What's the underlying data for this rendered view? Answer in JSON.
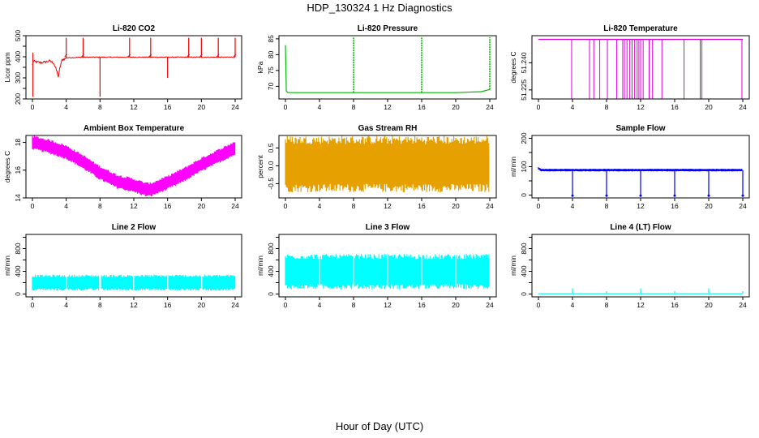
{
  "title": "HDP_130324  1 Hz Diagnostics",
  "xlabel": "Hour of Day (UTC)",
  "chart_data": [
    {
      "type": "line",
      "title": "Li-820 CO2",
      "ylabel": "Licor ppm",
      "color": "#ee0000",
      "xlim": [
        0,
        24
      ],
      "xticks": [
        0,
        4,
        8,
        12,
        16,
        20,
        24
      ],
      "ylim": [
        200,
        500
      ],
      "yticks": [
        200,
        250,
        300,
        350,
        400,
        450,
        500
      ],
      "yticklabels": [
        "200",
        "",
        "300",
        "",
        "400",
        "",
        "500"
      ],
      "style": "noisy",
      "series": [
        {
          "x": [
            0,
            0.1,
            0.2,
            0.5,
            1,
            1.5,
            2,
            2.5,
            2.9,
            3.1,
            3.2,
            3.5,
            3.8,
            4,
            6,
            8,
            10,
            12,
            14,
            16,
            18,
            20,
            22,
            24
          ],
          "y": [
            360,
            380,
            378,
            375,
            372,
            375,
            380,
            372,
            330,
            300,
            340,
            385,
            390,
            395,
            398,
            398,
            398,
            398,
            398,
            398,
            398,
            398,
            398,
            398
          ]
        }
      ],
      "spikes": [
        [
          4,
          490
        ],
        [
          6,
          490
        ],
        [
          8,
          210
        ],
        [
          11.5,
          490
        ],
        [
          14,
          490
        ],
        [
          16,
          300
        ],
        [
          18.5,
          490
        ],
        [
          20,
          490
        ],
        [
          22,
          490
        ],
        [
          24,
          490
        ]
      ]
    },
    {
      "type": "line",
      "title": "Li-820 Pressure",
      "ylabel": "kPa",
      "color": "#00bb00",
      "xlim": [
        0,
        24
      ],
      "xticks": [
        0,
        4,
        8,
        12,
        16,
        20,
        24
      ],
      "ylim": [
        66,
        86
      ],
      "yticks": [
        70,
        75,
        80,
        85
      ],
      "yticklabels": [
        "70",
        "75",
        "80",
        "85"
      ],
      "style": "dense",
      "series": [
        {
          "x": [
            0,
            0.1,
            0.3,
            2,
            4,
            8,
            12,
            16,
            20,
            23,
            24
          ],
          "y": [
            83,
            68.5,
            68,
            68,
            68,
            68,
            68,
            68,
            68,
            68.3,
            69
          ]
        }
      ],
      "spikes": [
        [
          8,
          85.5
        ],
        [
          16,
          85.5
        ],
        [
          24,
          85.5
        ]
      ]
    },
    {
      "type": "line",
      "title": "Li-820 Temperature",
      "ylabel": "degrees C",
      "color": "#dd00dd",
      "xlim": [
        0,
        24
      ],
      "xticks": [
        0,
        4,
        8,
        12,
        16,
        20,
        24
      ],
      "ylim": [
        51.22,
        51.255
      ],
      "yticks": [
        51.225,
        51.24
      ],
      "yticklabels": [
        "51.225",
        "51.240"
      ],
      "style": "baseline",
      "series": [
        {
          "x": [
            0,
            24
          ],
          "y": [
            51.253,
            51.253
          ]
        }
      ],
      "drops": [
        3.9,
        6,
        6.5,
        7.2,
        8.1,
        9.2,
        9.9,
        10.1,
        10.4,
        10.7,
        11,
        11.3,
        11.6,
        11.8,
        12,
        12.3,
        13,
        13.4,
        14.5,
        17.1,
        19,
        19.2,
        23.9
      ]
    },
    {
      "type": "line",
      "title": "Ambient Box Temperature",
      "ylabel": "degrees C",
      "color": "#ff00ff",
      "xlim": [
        0,
        24
      ],
      "xticks": [
        0,
        4,
        8,
        12,
        16,
        20,
        24
      ],
      "ylim": [
        14,
        18.5
      ],
      "yticks": [
        14,
        16,
        18
      ],
      "yticklabels": [
        "14",
        "16",
        "18"
      ],
      "style": "band",
      "band": 0.9,
      "series": [
        {
          "x": [
            0,
            2,
            4,
            6,
            8,
            10,
            12,
            13.5,
            14,
            16,
            18,
            20,
            22,
            24
          ],
          "y": [
            18,
            17.7,
            17.3,
            16.6,
            15.8,
            15.2,
            14.9,
            14.6,
            14.6,
            15.1,
            15.7,
            16.4,
            17.0,
            17.6
          ]
        }
      ]
    },
    {
      "type": "line",
      "title": "Gas Stream RH",
      "ylabel": "percent",
      "color": "#e6a000",
      "xlim": [
        0,
        24
      ],
      "xticks": [
        0,
        4,
        8,
        12,
        16,
        20,
        24
      ],
      "ylim": [
        -0.9,
        0.85
      ],
      "yticks": [
        -0.5,
        0,
        0.5
      ],
      "yticklabels": [
        "-0.5",
        "0.0",
        "0.5"
      ],
      "style": "band",
      "band": 1.35,
      "series": [
        {
          "x": [
            0,
            24
          ],
          "y": [
            0.05,
            0.05
          ]
        }
      ]
    },
    {
      "type": "line",
      "title": "Sample Flow",
      "ylabel": "ml/min",
      "color": "#0000ee",
      "xlim": [
        0,
        24
      ],
      "xticks": [
        0,
        4,
        8,
        12,
        16,
        20,
        24
      ],
      "ylim": [
        -10,
        210
      ],
      "yticks": [
        0,
        50,
        100,
        150,
        200
      ],
      "yticklabels": [
        "0",
        "",
        "100",
        "",
        "200"
      ],
      "style": "band",
      "band": 8,
      "series": [
        {
          "x": [
            0,
            0.3,
            24
          ],
          "y": [
            95,
            88,
            88
          ]
        }
      ],
      "spikes": [
        [
          4,
          -2
        ],
        [
          8,
          -2
        ],
        [
          12,
          -2
        ],
        [
          16,
          -2
        ],
        [
          20,
          -2
        ],
        [
          24,
          -2
        ]
      ]
    },
    {
      "type": "line",
      "title": "Line 2 Flow",
      "ylabel": "ml/min",
      "color": "#00ffff",
      "xlim": [
        0,
        24
      ],
      "xticks": [
        0,
        4,
        8,
        12,
        16,
        20,
        24
      ],
      "ylim": [
        -50,
        1050
      ],
      "yticks": [
        0,
        200,
        400,
        600,
        800,
        1000
      ],
      "yticklabels": [
        "0",
        "",
        "400",
        "",
        "800",
        ""
      ],
      "style": "band",
      "band": 240,
      "series": [
        {
          "x": [
            0,
            24
          ],
          "y": [
            200,
            200
          ]
        }
      ],
      "gaps": [
        4,
        8,
        12,
        16,
        20
      ]
    },
    {
      "type": "line",
      "title": "Line 3 Flow",
      "ylabel": "ml/min",
      "color": "#00ffff",
      "xlim": [
        0,
        24
      ],
      "xticks": [
        0,
        4,
        8,
        12,
        16,
        20,
        24
      ],
      "ylim": [
        -50,
        1050
      ],
      "yticks": [
        0,
        200,
        400,
        600,
        800,
        1000
      ],
      "yticklabels": [
        "0",
        "",
        "400",
        "",
        "800",
        ""
      ],
      "style": "band",
      "band": 530,
      "series": [
        {
          "x": [
            0,
            24
          ],
          "y": [
            395,
            395
          ]
        }
      ],
      "gaps": [
        4,
        8,
        12,
        16,
        20
      ]
    },
    {
      "type": "line",
      "title": "Line 4 (LT) Flow",
      "ylabel": "ml/min",
      "color": "#00ffff",
      "xlim": [
        0,
        24
      ],
      "xticks": [
        0,
        4,
        8,
        12,
        16,
        20,
        24
      ],
      "ylim": [
        -50,
        1050
      ],
      "yticks": [
        0,
        200,
        400,
        600,
        800,
        1000
      ],
      "yticklabels": [
        "0",
        "",
        "400",
        "",
        "800",
        ""
      ],
      "style": "baseline",
      "series": [
        {
          "x": [
            0,
            24
          ],
          "y": [
            5,
            5
          ]
        }
      ],
      "spikes": [
        [
          4,
          100
        ],
        [
          8,
          50
        ],
        [
          12,
          100
        ],
        [
          16,
          50
        ],
        [
          20,
          100
        ],
        [
          24,
          50
        ]
      ]
    }
  ]
}
